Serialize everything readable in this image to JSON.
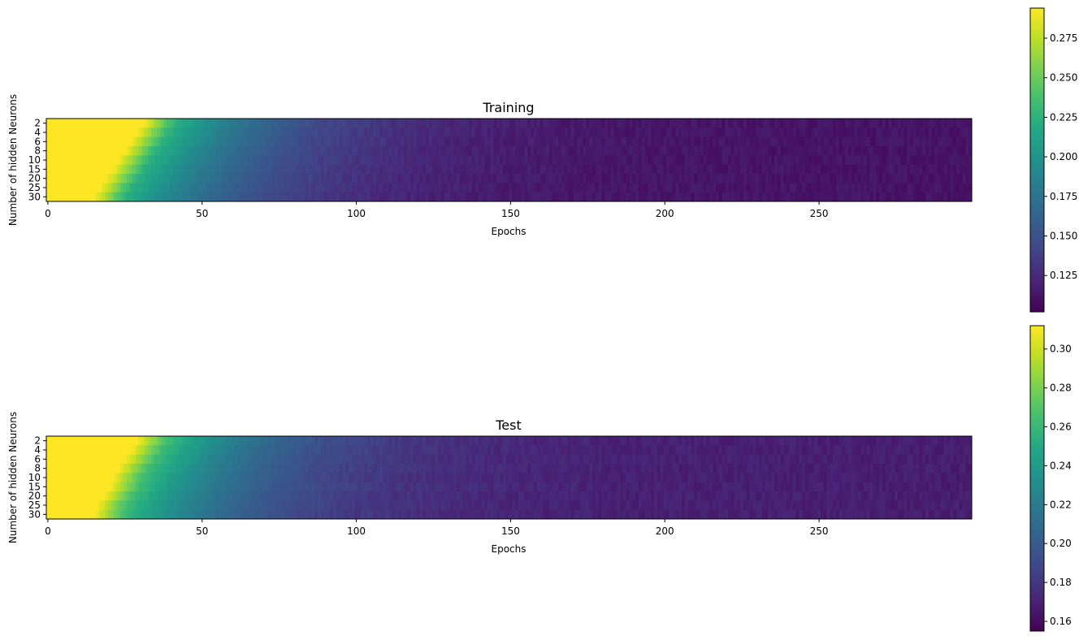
{
  "chart_data": [
    {
      "type": "heatmap",
      "title": "Training",
      "xlabel": "Epochs",
      "ylabel": "Number of hidden Neurons",
      "rows": [
        "2",
        "4",
        "6",
        "8",
        "10",
        "15",
        "20",
        "25",
        "30"
      ],
      "n_epochs": 300,
      "x_ticks": [
        0,
        50,
        100,
        150,
        200,
        250
      ],
      "colormap": "viridis",
      "vmin": 0.102,
      "vmax": 0.294,
      "colorbar_ticks": [
        "0.125",
        "0.150",
        "0.175",
        "0.200",
        "0.225",
        "0.250",
        "0.275"
      ],
      "colorbar_tick_values": [
        0.125,
        0.15,
        0.175,
        0.2,
        0.225,
        0.25,
        0.275
      ],
      "transition_epochs": [
        41,
        39,
        37,
        35,
        33,
        31,
        29,
        27,
        25
      ],
      "plateau_value": 0.225,
      "final_value": 0.112
    },
    {
      "type": "heatmap",
      "title": "Test",
      "xlabel": "Epochs",
      "ylabel": "Number of hidden Neurons",
      "rows": [
        "2",
        "4",
        "6",
        "8",
        "10",
        "15",
        "20",
        "25",
        "30"
      ],
      "n_epochs": 300,
      "x_ticks": [
        0,
        50,
        100,
        150,
        200,
        250
      ],
      "colormap": "viridis",
      "vmin": 0.155,
      "vmax": 0.312,
      "colorbar_ticks": [
        "0.16",
        "0.18",
        "0.20",
        "0.22",
        "0.24",
        "0.26",
        "0.28",
        "0.30"
      ],
      "colorbar_tick_values": [
        0.16,
        0.18,
        0.2,
        0.22,
        0.24,
        0.26,
        0.28,
        0.3
      ],
      "transition_epochs": [
        39,
        37,
        35,
        33,
        31,
        30,
        28,
        26,
        25
      ],
      "plateau_value": 0.262,
      "final_value": 0.168
    }
  ]
}
